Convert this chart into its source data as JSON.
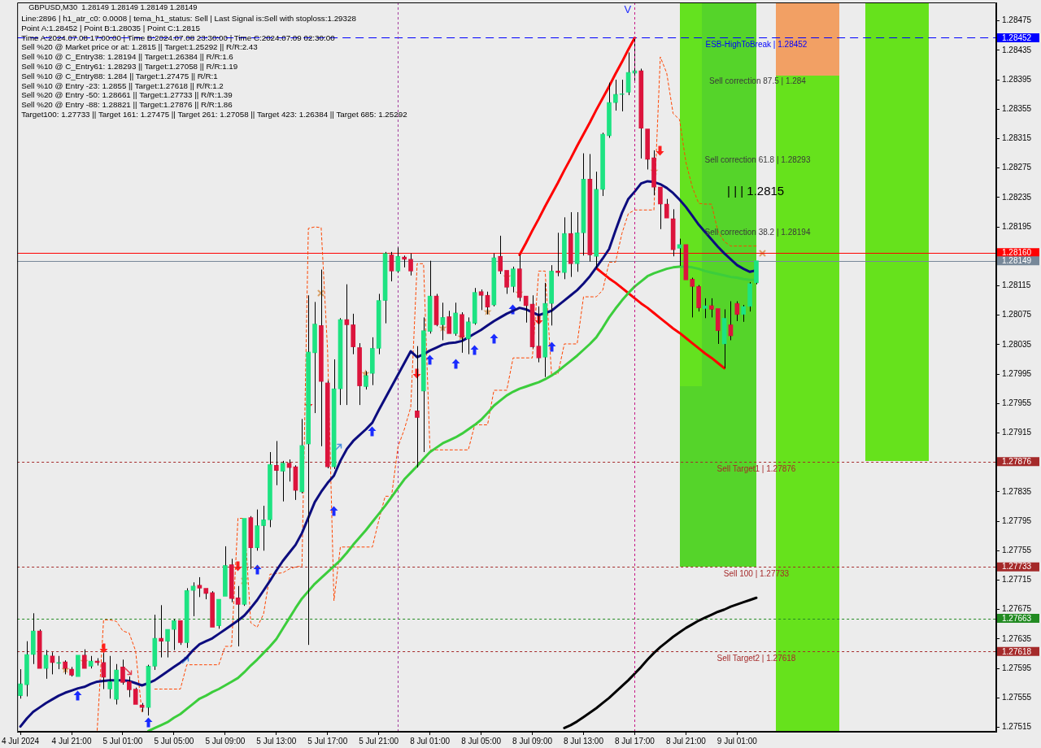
{
  "chart_data": {
    "type": "candlestick",
    "title": "GBPUSD,M30  1.28149 1.28149 1.28149 1.28149",
    "subtitle": "Line:2896 | h1_atr_c0: 0.0008 | tema_h1_status: Sell | Last Signal is:Sell with stoploss:1.29328\nPoint A:1.28452 | Point B:1.28035 | Point C:1.2815\nTime A:2024.07.08 17:00:00 | Time B:2024.07.08 23:30:00 | Time C:2024.07.09 02:30:00\nSell %20 @ Market price or at: 1.2815 || Target:1.25292 || R/R:2.43\nSell %10 @ C_Entry38: 1.28194 || Target:1.26384 || R/R:1.6\nSell %10 @ C_Entry61: 1.28293 || Target:1.27058 || R/R:1.19\nSell %10 @ C_Entry88: 1.284 || Target:1.27475 || R/R:1\nSell %10 @ Entry -23: 1.2855 || Target:1.27618 || R/R:1.2\nSell %20 @ Entry -50: 1.28661 || Target:1.27733 || R/R:1.39\nSell %20 @ Entry -88: 1.28821 || Target:1.27876 || R/R:1.86\nTarget100: 1.27733 || Target 161: 1.27475 || Target 261: 1.27058 || Target 423: 1.26384 || Target 685: 1.25292",
    "categories": [
      "4 Jul 2024",
      null,
      null,
      null,
      null,
      null,
      null,
      null,
      "4 Jul 21:00",
      null,
      null,
      null,
      null,
      null,
      null,
      null,
      "5 Jul 01:00",
      null,
      null,
      null,
      null,
      null,
      null,
      null,
      "5 Jul 05:00",
      null,
      null,
      null,
      null,
      null,
      null,
      null,
      "5 Jul 09:00",
      null,
      null,
      null,
      null,
      null,
      null,
      null,
      "5 Jul 13:00",
      null,
      null,
      null,
      null,
      null,
      null,
      null,
      "5 Jul 17:00",
      null,
      null,
      null,
      null,
      null,
      null,
      null,
      "5 Jul 21:00",
      null,
      null,
      null,
      null,
      null,
      null,
      null,
      "8 Jul 01:00",
      null,
      null,
      null,
      null,
      null,
      null,
      null,
      "8 Jul 05:00",
      null,
      null,
      null,
      null,
      null,
      null,
      null,
      "8 Jul 09:00",
      null,
      null,
      null,
      null,
      null,
      null,
      null,
      "8 Jul 13:00",
      null,
      null,
      null,
      null,
      null,
      null,
      null,
      "8 Jul 17:00",
      null,
      null,
      null,
      null,
      null,
      null,
      null,
      "8 Jul 21:00",
      null,
      null,
      null,
      null,
      null,
      null,
      null,
      "9 Jul 01:00",
      null,
      null,
      null
    ],
    "ohlc": [
      [
        1.27558,
        1.27594,
        1.27554,
        1.27574
      ],
      [
        1.27573,
        1.27632,
        1.27557,
        1.27614
      ],
      [
        1.27614,
        1.2767,
        1.27601,
        1.27646
      ],
      [
        1.27646,
        1.27648,
        1.27595,
        1.27595
      ],
      [
        1.27595,
        1.2762,
        1.27581,
        1.27613
      ],
      [
        1.27612,
        1.27617,
        1.27587,
        1.27603
      ],
      [
        1.27602,
        1.27612,
        1.27594,
        1.27603
      ],
      [
        1.27604,
        1.27606,
        1.27587,
        1.27595
      ],
      [
        1.27594,
        1.27597,
        1.27584,
        1.27586
      ],
      [
        1.27584,
        1.27613,
        1.27584,
        1.27613
      ],
      [
        1.27613,
        1.27621,
        1.27595,
        1.27595
      ],
      [
        1.27598,
        1.27612,
        1.27595,
        1.27605
      ],
      [
        1.27605,
        1.27609,
        1.27599,
        1.27603
      ],
      [
        1.27603,
        1.27616,
        1.27567,
        1.27583
      ],
      [
        1.27567,
        1.27612,
        1.27554,
        1.27577
      ],
      [
        1.27553,
        1.27601,
        1.27546,
        1.27593
      ],
      [
        1.27597,
        1.27607,
        1.27573,
        1.27576
      ],
      [
        1.27577,
        1.27584,
        1.27556,
        1.27566
      ],
      [
        1.27567,
        1.27569,
        1.27546,
        1.27546
      ],
      [
        1.27545,
        1.27548,
        1.27536,
        1.27542
      ],
      [
        1.27542,
        1.276,
        1.27531,
        1.27598
      ],
      [
        1.27598,
        1.27668,
        1.27593,
        1.27636
      ],
      [
        1.27636,
        1.27681,
        1.2761,
        1.27632
      ],
      [
        1.27632,
        1.27648,
        1.2761,
        1.27648
      ],
      [
        1.27648,
        1.27662,
        1.2762,
        1.2766
      ],
      [
        1.2766,
        1.2766,
        1.27627,
        1.2763
      ],
      [
        1.2763,
        1.27704,
        1.27623,
        1.27701
      ],
      [
        1.27701,
        1.27712,
        1.27666,
        1.27707
      ],
      [
        1.27708,
        1.27719,
        1.27692,
        1.27704
      ],
      [
        1.27704,
        1.27704,
        1.27689,
        1.27697
      ],
      [
        1.27698,
        1.277,
        1.27651,
        1.27651
      ],
      [
        1.27653,
        1.27689,
        1.27649,
        1.27689
      ],
      [
        1.27693,
        1.27761,
        1.27693,
        1.27735
      ],
      [
        1.27736,
        1.27744,
        1.27685,
        1.2769
      ],
      [
        1.27691,
        1.27707,
        1.27625,
        1.27682
      ],
      [
        1.27682,
        1.27799,
        1.2768,
        1.27799
      ],
      [
        1.278,
        1.27802,
        1.2773,
        1.27759
      ],
      [
        1.27759,
        1.27811,
        1.27755,
        1.27789
      ],
      [
        1.27789,
        1.27816,
        1.27755,
        1.27797
      ],
      [
        1.27797,
        1.27889,
        1.27787,
        1.27872
      ],
      [
        1.27871,
        1.27904,
        1.27844,
        1.27864
      ],
      [
        1.27863,
        1.27877,
        1.27822,
        1.27874
      ],
      [
        1.27874,
        1.27879,
        1.27849,
        1.27868
      ],
      [
        1.27869,
        1.27871,
        1.27824,
        1.27837
      ],
      [
        1.27835,
        1.27934,
        1.27833,
        1.27898
      ],
      [
        1.279,
        1.28102,
        1.27627,
        1.28025
      ],
      [
        1.28024,
        1.28093,
        1.27942,
        1.28063
      ],
      [
        1.28061,
        1.28137,
        1.27897,
        1.27985
      ],
      [
        1.27983,
        1.27986,
        1.27867,
        1.27869
      ],
      [
        1.27869,
        1.28015,
        1.27866,
        1.27975
      ],
      [
        1.27975,
        1.28071,
        1.27953,
        1.28069
      ],
      [
        1.28069,
        1.28117,
        1.27953,
        1.28062
      ],
      [
        1.28062,
        1.28077,
        1.28022,
        1.28032
      ],
      [
        1.28031,
        1.28037,
        1.27953,
        1.27979
      ],
      [
        1.27978,
        1.27999,
        1.27974,
        1.27993
      ],
      [
        1.27996,
        1.28045,
        1.2798,
        1.2803
      ],
      [
        1.2803,
        1.28104,
        1.28022,
        1.28095
      ],
      [
        1.28095,
        1.28161,
        1.28064,
        1.28159
      ],
      [
        1.28157,
        1.28161,
        1.28121,
        1.28135
      ],
      [
        1.28135,
        1.28167,
        1.28133,
        1.28155
      ],
      [
        1.28154,
        1.28156,
        1.2814,
        1.28151
      ],
      [
        1.28151,
        1.28159,
        1.28129,
        1.28135
      ],
      [
        1.27945,
        1.28033,
        1.27868,
        1.27936
      ],
      [
        1.27972,
        1.28072,
        1.27889,
        1.28054
      ],
      [
        1.28053,
        1.28149,
        1.2805,
        1.28101
      ],
      [
        1.28101,
        1.28104,
        1.2806,
        1.28062
      ],
      [
        1.28062,
        1.28092,
        1.28041,
        1.28072
      ],
      [
        1.28073,
        1.28081,
        1.2805,
        1.2805
      ],
      [
        1.2805,
        1.28092,
        1.28047,
        1.28078
      ],
      [
        1.28076,
        1.28079,
        1.28024,
        1.28045
      ],
      [
        1.28043,
        1.28072,
        1.28022,
        1.28066
      ],
      [
        1.28064,
        1.28112,
        1.28062,
        1.28106
      ],
      [
        1.28107,
        1.2811,
        1.28082,
        1.28102
      ],
      [
        1.28102,
        1.28107,
        1.28076,
        1.28086
      ],
      [
        1.28089,
        1.28159,
        1.28087,
        1.28153
      ],
      [
        1.28155,
        1.28183,
        1.28131,
        1.28135
      ],
      [
        1.28136,
        1.28136,
        1.28104,
        1.28113
      ],
      [
        1.28114,
        1.28141,
        1.28106,
        1.28138
      ],
      [
        1.28138,
        1.28157,
        1.28094,
        1.28099
      ],
      [
        1.28101,
        1.28101,
        1.28065,
        1.28088
      ],
      [
        1.2809,
        1.28102,
        1.2803,
        1.28032
      ],
      [
        1.28033,
        1.28087,
        1.28011,
        1.28017
      ],
      [
        1.28018,
        1.28119,
        1.27991,
        1.28091
      ],
      [
        1.28091,
        1.28143,
        1.28061,
        1.28135
      ],
      [
        1.28135,
        1.28187,
        1.28128,
        1.28133
      ],
      [
        1.28133,
        1.28208,
        1.28124,
        1.28186
      ],
      [
        1.28186,
        1.28215,
        1.28127,
        1.28145
      ],
      [
        1.28145,
        1.28215,
        1.28134,
        1.28187
      ],
      [
        1.28187,
        1.28295,
        1.28156,
        1.2826
      ],
      [
        1.2826,
        1.28294,
        1.28148,
        1.28157
      ],
      [
        1.28155,
        1.2827,
        1.28139,
        1.28246
      ],
      [
        1.28246,
        1.28323,
        1.28237,
        1.28321
      ],
      [
        1.28319,
        1.28391,
        1.28316,
        1.28364
      ],
      [
        1.28364,
        1.28395,
        1.28353,
        1.28375
      ],
      [
        1.28375,
        1.28395,
        1.28352,
        1.28376
      ],
      [
        1.28378,
        1.28432,
        1.28374,
        1.28405
      ],
      [
        1.28404,
        1.28452,
        1.28391,
        1.28407
      ],
      [
        1.28407,
        1.2841,
        1.28288,
        1.28329
      ],
      [
        1.28328,
        1.28328,
        1.28273,
        1.28287
      ],
      [
        1.28289,
        1.28299,
        1.28238,
        1.28249
      ],
      [
        1.28249,
        1.28249,
        1.28192,
        1.28226
      ],
      [
        1.28226,
        1.28233,
        1.28207,
        1.28207
      ],
      [
        1.28206,
        1.28219,
        1.28155,
        1.28164
      ],
      [
        1.28166,
        1.28179,
        1.28142,
        1.28171
      ],
      [
        1.28171,
        1.28171,
        1.28123,
        1.28123
      ],
      [
        1.28124,
        1.28126,
        1.28072,
        1.28114
      ],
      [
        1.28114,
        1.28116,
        1.2808,
        1.28085
      ],
      [
        1.28084,
        1.28098,
        1.28071,
        1.28088
      ],
      [
        1.28088,
        1.28098,
        1.28072,
        1.28083
      ],
      [
        1.28084,
        1.28084,
        1.28036,
        1.28054
      ],
      [
        1.28036,
        1.28083,
        1.28003,
        1.28071
      ],
      [
        1.28062,
        1.28094,
        1.28041,
        1.28047
      ],
      [
        1.28091,
        1.28094,
        1.28067,
        1.28076
      ],
      [
        1.28076,
        1.28089,
        1.28066,
        1.28087
      ],
      [
        1.28087,
        1.2812,
        1.2808,
        1.28118
      ],
      [
        1.28119,
        1.28149,
        1.28117,
        1.28149
      ]
    ],
    "colors": [
      "#1de382",
      "#1de382",
      "#1de382",
      "#dc143c",
      "#1de382",
      "#dc143c",
      "#1de382",
      "#dc143c",
      "#dc143c",
      "#1de382",
      "#dc143c",
      "#1de382",
      "#dc143c",
      "#dc143c",
      "#1de382",
      "#1de382",
      "#dc143c",
      "#dc143c",
      "#dc143c",
      "#dc143c",
      "#1de382",
      "#1de382",
      "#dc143c",
      "#1de382",
      "#1de382",
      "#dc143c",
      "#1de382",
      "#1de382",
      "#dc143c",
      "#dc143c",
      "#dc143c",
      "#1de382",
      "#1de382",
      "#dc143c",
      "#dc143c",
      "#1de382",
      "#dc143c",
      "#1de382",
      "#1de382",
      "#1de382",
      "#dc143c",
      "#1de382",
      "#dc143c",
      "#dc143c",
      "#1de382",
      "#1de382",
      "#1de382",
      "#dc143c",
      "#dc143c",
      "#1de382",
      "#1de382",
      "#dc143c",
      "#dc143c",
      "#dc143c",
      "#1de382",
      "#1de382",
      "#1de382",
      "#1de382",
      "#dc143c",
      "#1de382",
      "#dc143c",
      "#dc143c",
      "#dc143c",
      "#1de382",
      "#1de382",
      "#dc143c",
      "#1de382",
      "#dc143c",
      "#1de382",
      "#dc143c",
      "#1de382",
      "#1de382",
      "#dc143c",
      "#dc143c",
      "#1de382",
      "#dc143c",
      "#dc143c",
      "#1de382",
      "#dc143c",
      "#dc143c",
      "#dc143c",
      "#dc143c",
      "#1de382",
      "#1de382",
      "#dc143c",
      "#1de382",
      "#dc143c",
      "#1de382",
      "#1de382",
      "#dc143c",
      "#1de382",
      "#1de382",
      "#1de382",
      "#1de382",
      "#1de382",
      "#1de382",
      "#1de382",
      "#dc143c",
      "#dc143c",
      "#dc143c",
      "#dc143c",
      "#dc143c",
      "#dc143c",
      "#1de382",
      "#dc143c",
      "#dc143c",
      "#dc143c",
      "#1de382",
      "#dc143c",
      "#dc143c",
      "#1de382",
      "#dc143c",
      "#dc143c",
      "#1de382",
      "#1de382",
      "#1de382"
    ],
    "series": [
      {
        "type": "line",
        "color": "#0c0c7e",
        "values": [
          1.27516,
          1.27527,
          1.27536,
          1.27542,
          1.27548,
          1.27553,
          1.27558,
          1.27562,
          1.27565,
          1.27568,
          1.2757,
          1.27574,
          1.27577,
          1.27578,
          1.27579,
          1.27579,
          1.27579,
          1.27578,
          1.27575,
          1.27572,
          1.27575,
          1.27579,
          1.27585,
          1.27591,
          1.27597,
          1.27603,
          1.2761,
          1.2762,
          1.27628,
          1.27632,
          1.27636,
          1.27642,
          1.27648,
          1.27654,
          1.2766,
          1.27667,
          1.27677,
          1.27688,
          1.27701,
          1.27714,
          1.27728,
          1.27741,
          1.27752,
          1.27763,
          1.27779,
          1.278,
          1.27821,
          1.27835,
          1.27847,
          1.27857,
          1.27877,
          1.27893,
          1.27904,
          1.27912,
          1.2792,
          1.27929,
          1.27946,
          1.27962,
          1.27978,
          1.27994,
          1.2801,
          1.28026,
          1.28018,
          1.28022,
          1.28027,
          1.28031,
          1.28035,
          1.28037,
          1.28038,
          1.2804,
          1.28045,
          1.2805,
          1.28055,
          1.28061,
          1.28067,
          1.28072,
          1.28077,
          1.28081,
          1.28085,
          1.28083,
          1.28079,
          1.28075,
          1.28078,
          1.28081,
          1.28088,
          1.28095,
          1.28102,
          1.28109,
          1.28118,
          1.28128,
          1.2814,
          1.28152,
          1.28165,
          1.2819,
          1.28214,
          1.28233,
          1.28243,
          1.28254,
          1.28257,
          1.28256,
          1.28253,
          1.28248,
          1.28241,
          1.28232,
          1.28222,
          1.2821,
          1.28198,
          1.28188,
          1.28178,
          1.28168,
          1.28159,
          1.28151,
          1.28143,
          1.28138,
          1.28134,
          1.28136
        ]
      },
      {
        "type": "line",
        "color": "#3ccd3c",
        "values": [
          null,
          null,
          null,
          null,
          null,
          null,
          null,
          null,
          null,
          null,
          null,
          null,
          null,
          null,
          null,
          null,
          null,
          null,
          null,
          null,
          1.2751,
          1.27514,
          1.27518,
          1.27522,
          1.27528,
          1.27533,
          1.2754,
          1.27547,
          1.27554,
          1.27558,
          1.27563,
          1.27567,
          1.27572,
          1.27577,
          1.27582,
          1.2759,
          1.27599,
          1.27607,
          1.27616,
          1.27625,
          1.27635,
          1.27649,
          1.27663,
          1.27677,
          1.2769,
          1.277,
          1.2771,
          1.27718,
          1.27726,
          1.27734,
          1.27742,
          1.27752,
          1.27763,
          1.27773,
          1.27783,
          1.27794,
          1.27805,
          1.27816,
          1.27828,
          1.2784,
          1.27852,
          1.27861,
          1.2787,
          1.2788,
          1.27889,
          1.27895,
          1.27901,
          1.27905,
          1.27909,
          1.27914,
          1.2792,
          1.27926,
          1.27933,
          1.27942,
          1.27952,
          1.27959,
          1.27966,
          1.27971,
          1.27975,
          1.27978,
          1.27981,
          1.27984,
          1.27988,
          1.27993,
          1.27999,
          1.28006,
          1.28013,
          1.2802,
          1.28028,
          1.28036,
          1.28045,
          1.28058,
          1.28072,
          1.28084,
          1.28095,
          1.28105,
          1.28114,
          1.28121,
          1.28128,
          1.28132,
          1.28135,
          1.28138,
          1.2814,
          1.28141,
          1.28141,
          1.2814,
          1.28138,
          1.28135,
          1.28133,
          1.28131,
          1.28129,
          1.28127,
          1.28126,
          1.28124,
          1.28123,
          1.28123
        ]
      },
      {
        "type": "line",
        "color": "#000000",
        "values": [
          null,
          null,
          null,
          null,
          null,
          null,
          null,
          null,
          null,
          null,
          null,
          null,
          null,
          null,
          null,
          null,
          null,
          null,
          null,
          null,
          null,
          null,
          null,
          null,
          null,
          null,
          null,
          null,
          null,
          null,
          null,
          null,
          null,
          null,
          null,
          null,
          null,
          null,
          null,
          null,
          null,
          null,
          null,
          null,
          null,
          null,
          null,
          null,
          null,
          null,
          null,
          null,
          null,
          null,
          null,
          null,
          null,
          null,
          null,
          null,
          null,
          null,
          null,
          null,
          null,
          null,
          null,
          null,
          null,
          null,
          null,
          null,
          null,
          null,
          null,
          null,
          null,
          null,
          null,
          null,
          null,
          null,
          null,
          null,
          null,
          1.27514,
          1.27518,
          1.27523,
          1.27529,
          1.27535,
          1.27541,
          1.27548,
          1.27555,
          1.27563,
          1.27571,
          1.27579,
          1.27588,
          1.27597,
          1.27607,
          1.27616,
          1.27624,
          1.27631,
          1.27638,
          1.27644,
          1.2765,
          1.27655,
          1.2766,
          1.27664,
          1.27668,
          1.27672,
          1.27675,
          1.27679,
          1.27682,
          1.27685,
          1.27688,
          1.27691
        ]
      },
      {
        "type": "line",
        "color": "#ff4500",
        "line_style": "dotted",
        "values": [
          null,
          null,
          null,
          null,
          null,
          null,
          null,
          null,
          null,
          null,
          null,
          null,
          1.27511,
          1.27661,
          1.27661,
          1.27659,
          1.27646,
          1.27643,
          1.27619,
          1.27534,
          null,
          1.27567,
          1.27567,
          1.27567,
          1.27567,
          1.27567,
          1.276,
          1.276,
          1.276,
          1.276,
          1.276,
          1.276,
          1.27625,
          1.27625,
          1.27799,
          1.27799,
          1.27657,
          1.27651,
          1.27669,
          1.27723,
          1.27724,
          1.27725,
          1.2773,
          1.27733,
          1.27734,
          1.28193,
          1.28195,
          1.28194,
          1.28028,
          1.27687,
          1.2776,
          1.2776,
          1.2776,
          1.2776,
          1.2776,
          1.2776,
          1.27796,
          1.27829,
          1.27829,
          1.27896,
          1.2792,
          1.2795,
          1.28145,
          1.28145,
          1.27892,
          1.27892,
          1.27892,
          1.27892,
          1.27892,
          1.27892,
          1.27892,
          1.27926,
          1.27926,
          1.27926,
          1.27973,
          1.27973,
          1.27973,
          1.28017,
          1.28017,
          1.28017,
          1.28017,
          1.28135,
          1.28135,
          1.27995,
          1.27995,
          1.28036,
          1.28036,
          1.28036,
          1.281,
          1.281,
          1.281,
          1.28109,
          1.28147,
          1.28147,
          1.28186,
          1.28213,
          1.28218,
          1.28218,
          1.28218,
          1.28218,
          1.28426,
          1.28404,
          1.28349,
          1.28341,
          1.28283,
          1.28249,
          1.28227,
          1.28226,
          1.28226,
          1.28189,
          1.28175,
          1.28169,
          1.28169,
          1.28169,
          1.28169,
          1.28169
        ]
      },
      {
        "type": "line",
        "color": "#ff0000",
        "values": [
          null,
          null,
          null,
          null,
          null,
          null,
          null,
          null,
          null,
          null,
          null,
          null,
          null,
          null,
          null,
          null,
          null,
          null,
          null,
          null,
          null,
          null,
          null,
          null,
          null,
          null,
          null,
          null,
          null,
          null,
          null,
          null,
          null,
          null,
          null,
          null,
          null,
          null,
          null,
          null,
          null,
          null,
          null,
          null,
          null,
          null,
          null,
          null,
          null,
          null,
          null,
          null,
          null,
          null,
          null,
          null,
          null,
          null,
          null,
          null,
          null,
          null,
          null,
          null,
          null,
          null,
          null,
          null,
          null,
          null,
          null,
          null,
          null,
          null,
          null,
          null,
          null,
          null,
          1.28157,
          1.28173,
          1.2819,
          1.28206,
          1.28223,
          1.28239,
          1.28255,
          1.28272,
          1.28288,
          1.28305,
          1.28321,
          1.28337,
          1.28354,
          1.2837,
          1.28386,
          1.28403,
          1.28419,
          1.28436,
          1.28452,
          null,
          null,
          null,
          null,
          null,
          null,
          null,
          null,
          null,
          null,
          null,
          null,
          null,
          null,
          null,
          null,
          null,
          null,
          null
        ]
      },
      {
        "type": "line",
        "color": "#ff0000",
        "values": [
          null,
          null,
          null,
          null,
          null,
          null,
          null,
          null,
          null,
          null,
          null,
          null,
          null,
          null,
          null,
          null,
          null,
          null,
          null,
          null,
          null,
          null,
          null,
          null,
          null,
          null,
          null,
          null,
          null,
          null,
          null,
          null,
          null,
          null,
          null,
          null,
          null,
          null,
          null,
          null,
          null,
          null,
          null,
          null,
          null,
          null,
          null,
          null,
          null,
          null,
          null,
          null,
          null,
          null,
          null,
          null,
          null,
          null,
          null,
          null,
          null,
          null,
          null,
          null,
          null,
          null,
          null,
          null,
          null,
          null,
          null,
          null,
          null,
          null,
          null,
          null,
          null,
          null,
          null,
          null,
          null,
          null,
          null,
          null,
          null,
          null,
          null,
          null,
          null,
          null,
          1.28139,
          1.28132,
          1.28125,
          1.28119,
          1.28112,
          1.28105,
          1.28098,
          1.28091,
          1.28085,
          1.28078,
          1.28071,
          1.28064,
          1.28057,
          1.28051,
          1.28044,
          1.28037,
          1.2803,
          1.28023,
          1.28017,
          1.2801,
          1.28003,
          null,
          null,
          null,
          null,
          null
        ]
      }
    ],
    "ylim": [
      1.27509,
      1.285
    ],
    "yticks": [
      1.27515,
      1.27555,
      1.27595,
      1.27635,
      1.27675,
      1.27715,
      1.27755,
      1.27795,
      1.27835,
      1.27915,
      1.27955,
      1.27995,
      1.28035,
      1.28075,
      1.28115,
      1.28195,
      1.28235,
      1.28275,
      1.28315,
      1.28355,
      1.28395,
      1.28435,
      1.28475
    ],
    "ref_lines": [
      {
        "axis": "y",
        "value": 1.28452,
        "label": "1.28452",
        "color": "#0000ff",
        "line_style": "dashed"
      },
      {
        "axis": "y",
        "value": 1.2816,
        "label": "1.28160",
        "color": "#ff0000",
        "line_style": "solid"
      },
      {
        "axis": "y",
        "value": 1.28149,
        "label": "1.28149",
        "color": "#778899",
        "line_style": "solid"
      },
      {
        "axis": "y",
        "value": 1.27876,
        "label": "1.27876",
        "color": "#a52a2a",
        "line_style": "dotted"
      },
      {
        "axis": "y",
        "value": 1.27733,
        "label": "1.27733",
        "color": "#a52a2a",
        "line_style": "dotted"
      },
      {
        "axis": "y",
        "value": 1.27663,
        "label": "1.27663",
        "color": "#228b22",
        "line_style": "dotted"
      },
      {
        "axis": "y",
        "value": 1.27618,
        "label": "1.27618",
        "color": "#a52a2a",
        "line_style": "dotted"
      },
      {
        "axis": "x",
        "value": "8 Jul 17:00",
        "color": "#c71585",
        "line_style": "dotted"
      }
    ],
    "annotations": [
      "V",
      {
        "text": "ESB-HighToBreak | 1.28452",
        "y": 1.28452
      },
      "Sell correction 87.5 | 1.284",
      "Sell correction 61.8 | 1.28293",
      "| | | 1.2815",
      "Sell correction 38.2 | 1.28194",
      {
        "text": "Sell Target1 | 1.27876",
        "y": 1.27876
      },
      {
        "text": "Sell 100 | 1.27733",
        "y": 1.27733
      },
      {
        "text": "Sell Target2 | 1.27618",
        "y": 1.27618
      }
    ]
  }
}
